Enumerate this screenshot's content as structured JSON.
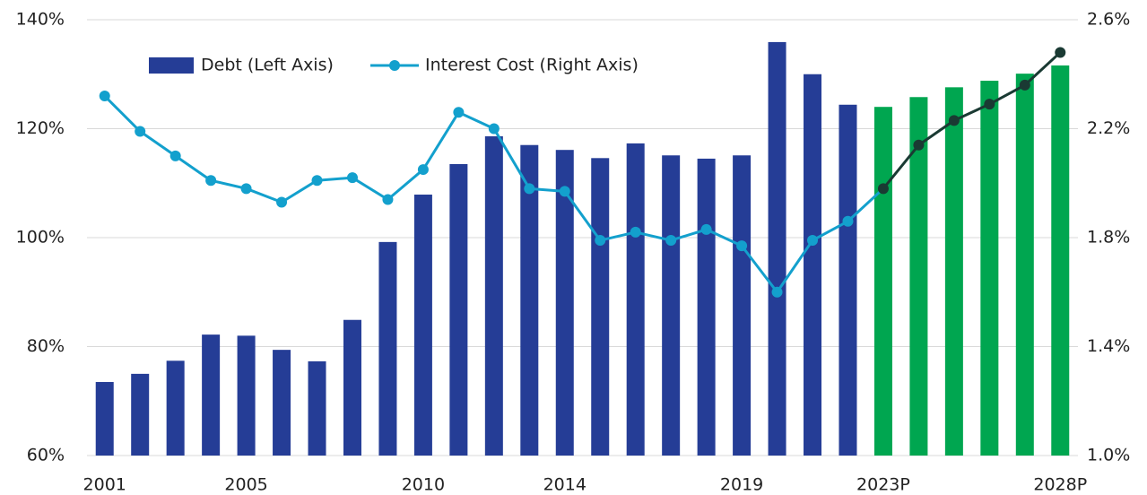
{
  "chart_data": {
    "type": "bar_line",
    "categories": [
      "2001",
      null,
      null,
      null,
      "2005",
      null,
      null,
      null,
      null,
      "2010",
      null,
      null,
      null,
      "2014",
      null,
      null,
      null,
      null,
      "2019",
      null,
      null,
      null,
      "2023P",
      null,
      null,
      null,
      null,
      "2028P"
    ],
    "series": [
      {
        "name": "Debt (Left Axis)",
        "type": "bar",
        "axis": "y",
        "color": "#253d96",
        "point_colors": [
          "#253d96",
          "#253d96",
          "#253d96",
          "#253d96",
          "#253d96",
          "#253d96",
          "#253d96",
          "#253d96",
          "#253d96",
          "#253d96",
          "#253d96",
          "#253d96",
          "#253d96",
          "#253d96",
          "#253d96",
          "#253d96",
          "#253d96",
          "#253d96",
          "#253d96",
          "#253d96",
          "#253d96",
          "#253d96",
          "#00a650",
          "#00a650",
          "#00a650",
          "#00a650",
          "#00a650",
          "#00a650"
        ],
        "values": [
          73.5,
          75,
          77.4,
          82.2,
          82,
          79.4,
          77.3,
          84.9,
          99.2,
          107.9,
          113.5,
          118.6,
          117,
          116.1,
          114.6,
          117.3,
          115.1,
          114.5,
          115.1,
          135.9,
          130,
          124.4,
          124,
          125.8,
          127.6,
          128.8,
          130.1,
          131.6
        ]
      },
      {
        "name": "Interest Cost (Right Axis)",
        "type": "line",
        "axis": "y2",
        "color": "#13a0cd",
        "point_colors": [
          "#13a0cd",
          "#13a0cd",
          "#13a0cd",
          "#13a0cd",
          "#13a0cd",
          "#13a0cd",
          "#13a0cd",
          "#13a0cd",
          "#13a0cd",
          "#13a0cd",
          "#13a0cd",
          "#13a0cd",
          "#13a0cd",
          "#13a0cd",
          "#13a0cd",
          "#13a0cd",
          "#13a0cd",
          "#13a0cd",
          "#13a0cd",
          "#13a0cd",
          "#13a0cd",
          "#13a0cd",
          "#1a3a33",
          "#1a3a33",
          "#1a3a33",
          "#1a3a33",
          "#1a3a33",
          "#1a3a33"
        ],
        "values": [
          2.32,
          2.19,
          2.1,
          2.01,
          1.98,
          1.93,
          2.01,
          2.02,
          1.94,
          2.05,
          2.26,
          2.2,
          1.98,
          1.97,
          1.79,
          1.82,
          1.79,
          1.83,
          1.77,
          1.6,
          1.79,
          1.86,
          1.98,
          2.14,
          2.23,
          2.29,
          2.36,
          2.48
        ]
      }
    ],
    "ylim": [
      60,
      140
    ],
    "yticks": [
      {
        "value": 60,
        "label": "60%"
      },
      {
        "value": 80,
        "label": "80%"
      },
      {
        "value": 100,
        "label": "100%"
      },
      {
        "value": 120,
        "label": "120%"
      },
      {
        "value": 140,
        "label": "140%"
      }
    ],
    "y2lim": [
      1.0,
      2.6
    ],
    "y2ticks": [
      {
        "value": 1.0,
        "label": "1.0%"
      },
      {
        "value": 1.4,
        "label": "1.4%"
      },
      {
        "value": 1.8,
        "label": "1.8%"
      },
      {
        "value": 2.2,
        "label": "2.2%"
      },
      {
        "value": 2.6,
        "label": "2.6%"
      }
    ],
    "grid": true,
    "legend": "top-left"
  }
}
